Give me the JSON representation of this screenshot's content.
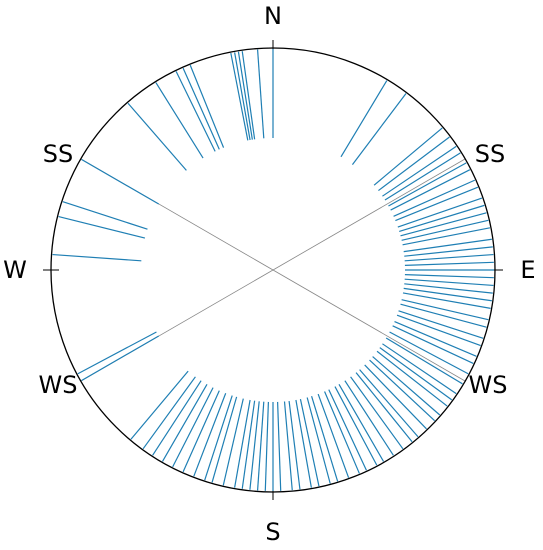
{
  "chart_data": {
    "type": "radial",
    "direction_labels": [
      "N",
      "SS",
      "E",
      "WS",
      "S",
      "WS",
      "W",
      "SS"
    ],
    "color": "#1f7fb4",
    "angles": [
      0,
      -4,
      -8,
      -9,
      -10,
      -11,
      -22,
      -24,
      -26,
      -32,
      -41,
      31,
      37,
      50,
      53,
      56,
      58,
      61,
      63,
      66,
      68,
      71,
      73,
      75,
      77,
      79,
      82,
      84,
      86,
      88,
      90,
      92,
      94,
      96,
      98,
      100,
      103,
      105,
      108,
      110,
      113,
      115,
      118,
      121,
      124,
      126,
      128,
      131,
      133,
      136,
      139,
      141,
      144,
      147,
      150,
      152,
      155,
      157,
      160,
      163,
      165,
      168,
      170,
      173,
      175,
      178,
      180,
      182,
      184,
      186,
      188,
      190,
      193,
      196,
      198,
      201,
      204,
      207,
      210,
      213,
      216,
      220,
      240,
      242,
      274,
      284,
      288,
      300
    ]
  }
}
